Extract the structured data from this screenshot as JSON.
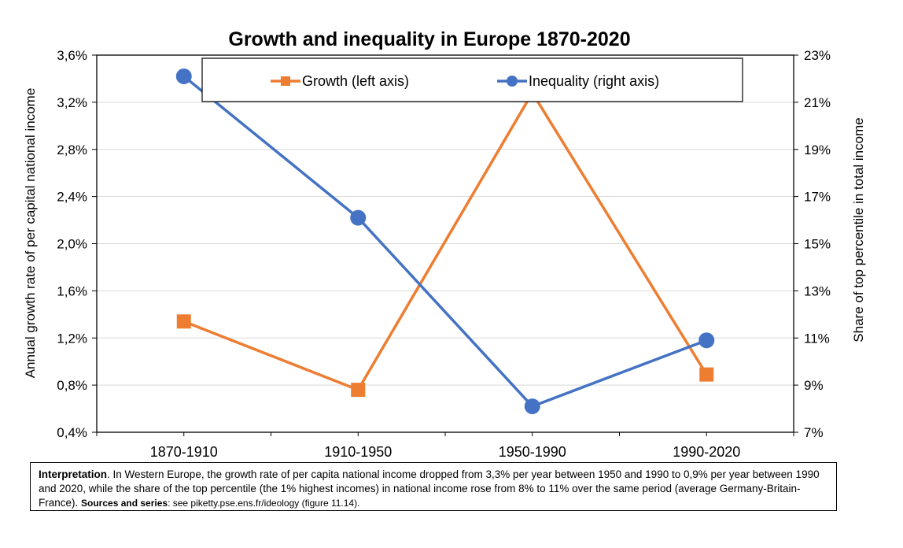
{
  "chart_data": {
    "type": "line",
    "title": "Growth and inequality in Europe 1870-2020",
    "categories": [
      "1870-1910",
      "1910-1950",
      "1950-1990",
      "1990-2020"
    ],
    "series": [
      {
        "name": "Growth (left axis)",
        "axis": "left",
        "marker": "square",
        "color": "#ED7D31",
        "values": [
          1.34,
          0.76,
          3.28,
          0.89
        ]
      },
      {
        "name": "Inequality (right axis)",
        "axis": "right",
        "marker": "circle",
        "color": "#4472C4",
        "values": [
          22.1,
          16.1,
          8.1,
          10.9
        ]
      }
    ],
    "left_axis": {
      "label": "Annual growth rate of per capital national income",
      "min": 0.4,
      "max": 3.6,
      "ticks": [
        "0,4%",
        "0,8%",
        "1,2%",
        "1,6%",
        "2,0%",
        "2,4%",
        "2,8%",
        "3,2%",
        "3,6%"
      ]
    },
    "right_axis": {
      "label": "Share of top percentile in total income",
      "min": 7,
      "max": 23,
      "ticks": [
        "7%",
        "9%",
        "11%",
        "13%",
        "15%",
        "17%",
        "19%",
        "21%",
        "23%"
      ]
    },
    "grid": true,
    "legend_position": "top"
  },
  "note": {
    "interpretation_label": "Interpretation",
    "interpretation_text": ". In Western Europe, the growth rate of per capita national income dropped from 3,3% per year between 1950 and 1990 to 0,9% per year between 1990 and 2020, while the share of the top percentile (the 1% highest incomes) in national income rose from 8% to 11% over the same period (average Germany-Britain-France). ",
    "sources_label": "Sources and series",
    "sources_text": ": see piketty.pse.ens.fr/ideology (figure 11.14)."
  }
}
